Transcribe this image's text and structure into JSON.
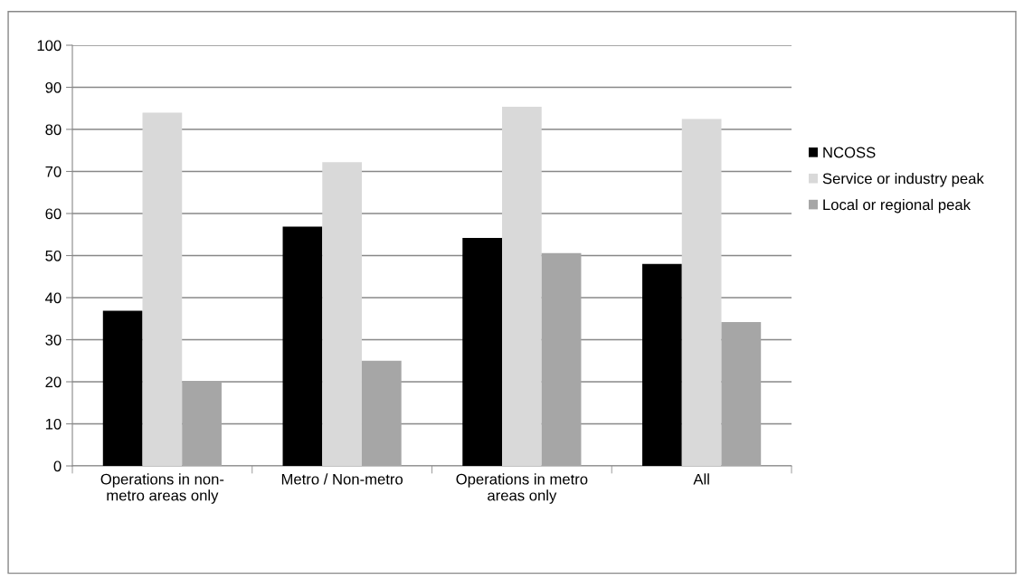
{
  "chart_data": {
    "type": "bar",
    "categories": [
      "Operations in non-\nmetro areas only",
      "Metro / Non-metro",
      "Operations in metro\nareas only",
      "All"
    ],
    "series": [
      {
        "name": "NCOSS",
        "color": "#000000",
        "values": [
          36.9,
          56.9,
          54.2,
          48.0
        ]
      },
      {
        "name": "Service or industry peak",
        "color": "#d9d9d9",
        "values": [
          84.0,
          72.2,
          85.4,
          82.5
        ]
      },
      {
        "name": "Local or regional peak",
        "color": "#a6a6a6",
        "values": [
          20.0,
          25.0,
          50.6,
          34.2
        ]
      }
    ],
    "ylim": [
      0,
      100
    ],
    "yticks": [
      0,
      10,
      20,
      30,
      40,
      50,
      60,
      70,
      80,
      90,
      100
    ],
    "grid": "y",
    "legend": "right"
  }
}
